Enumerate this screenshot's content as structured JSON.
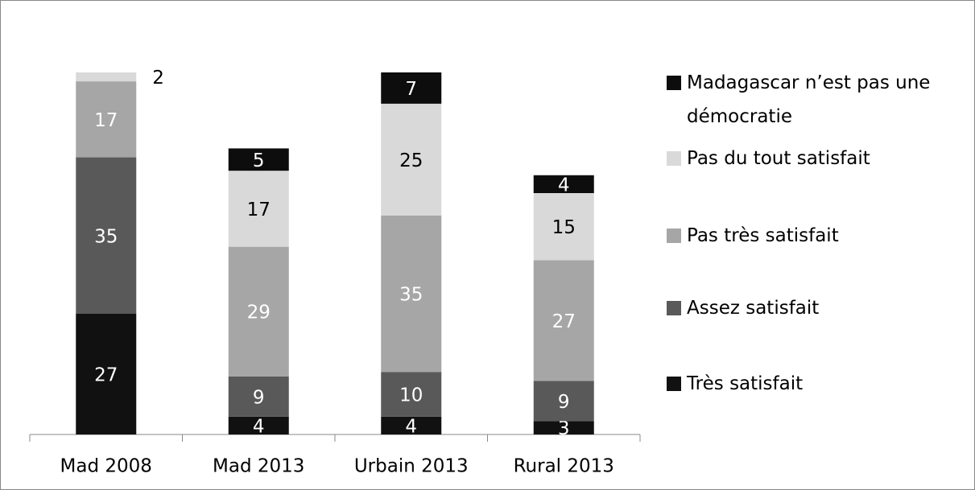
{
  "chart_data": {
    "type": "stacked_bar",
    "categories": [
      "Mad 2008",
      "Mad 2013",
      "Urbain 2013",
      "Rural 2013"
    ],
    "series": [
      {
        "name": "Très satisfait",
        "color": "#111111",
        "values": [
          27,
          4,
          4,
          3
        ]
      },
      {
        "name": "Assez satisfait",
        "color": "#595959",
        "values": [
          35,
          9,
          10,
          9
        ]
      },
      {
        "name": "Pas très satisfait",
        "color": "#a6a6a6",
        "values": [
          17,
          29,
          35,
          27
        ]
      },
      {
        "name": "Pas du tout satisfait",
        "color": "#d9d9d9",
        "values": [
          2,
          17,
          25,
          15
        ]
      },
      {
        "name": "Madagascar n’est pas une démocratie",
        "color": "#0d0d0d",
        "values": [
          null,
          5,
          7,
          4
        ]
      }
    ],
    "legend": "right"
  }
}
